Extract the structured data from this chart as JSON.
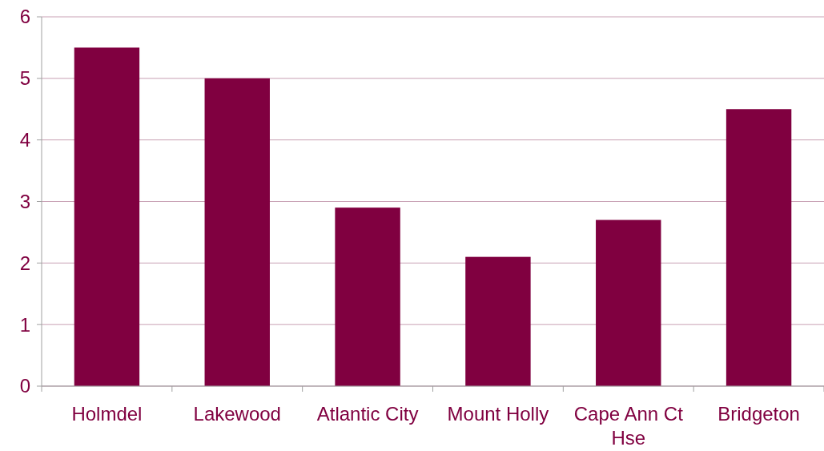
{
  "chart_data": {
    "type": "bar",
    "categories": [
      "Holmdel",
      "Lakewood",
      "Atlantic City",
      "Mount Holly",
      "Cape Ann Ct Hse",
      "Bridgeton"
    ],
    "values": [
      5.5,
      5.0,
      2.9,
      2.1,
      2.7,
      4.5
    ],
    "color": "#800040",
    "ylim": [
      0,
      6
    ],
    "yticks": [
      0,
      1,
      2,
      3,
      4,
      5,
      6
    ],
    "grid": "y"
  }
}
